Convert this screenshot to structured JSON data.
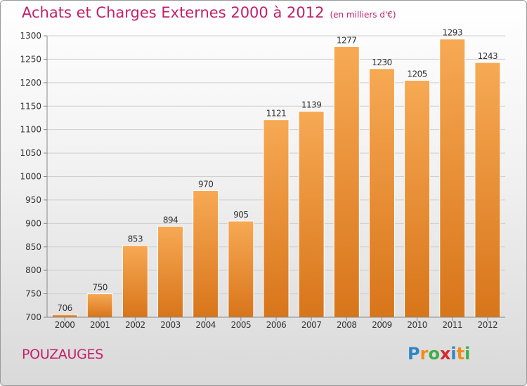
{
  "header": {
    "title": "Achats et Charges Externes 2000 à 2012",
    "subtitle": "(en milliers d'€)"
  },
  "footer": {
    "city": "POUZAUGES",
    "brand": "Proxiti",
    "brand_letters": [
      {
        "ch": "P",
        "color": "#2f86c6"
      },
      {
        "ch": "r",
        "color": "#f08c1b"
      },
      {
        "ch": "o",
        "color": "#3fae49"
      },
      {
        "ch": "x",
        "color": "#d7262d"
      },
      {
        "ch": "i",
        "color": "#2f86c6"
      },
      {
        "ch": "t",
        "color": "#f08c1b"
      },
      {
        "ch": "i",
        "color": "#3fae49"
      }
    ]
  },
  "colors": {
    "title": "#c21f6b",
    "bar_light": "#f7a954",
    "bar_dark": "#d8751a",
    "grid": "#cfcfcf",
    "axis": "#888888"
  },
  "chart_data": {
    "type": "bar",
    "categories": [
      "2000",
      "2001",
      "2002",
      "2003",
      "2004",
      "2005",
      "2006",
      "2007",
      "2008",
      "2009",
      "2010",
      "2011",
      "2012"
    ],
    "values": [
      706,
      750,
      853,
      894,
      970,
      905,
      1121,
      1139,
      1277,
      1230,
      1205,
      1293,
      1243
    ],
    "ylim": [
      700,
      1300
    ],
    "yticks": [
      700,
      750,
      800,
      850,
      900,
      950,
      1000,
      1050,
      1100,
      1150,
      1200,
      1250,
      1300
    ],
    "grid": true,
    "title": "Achats et Charges Externes 2000 à 2012",
    "xlabel": "",
    "ylabel": ""
  }
}
